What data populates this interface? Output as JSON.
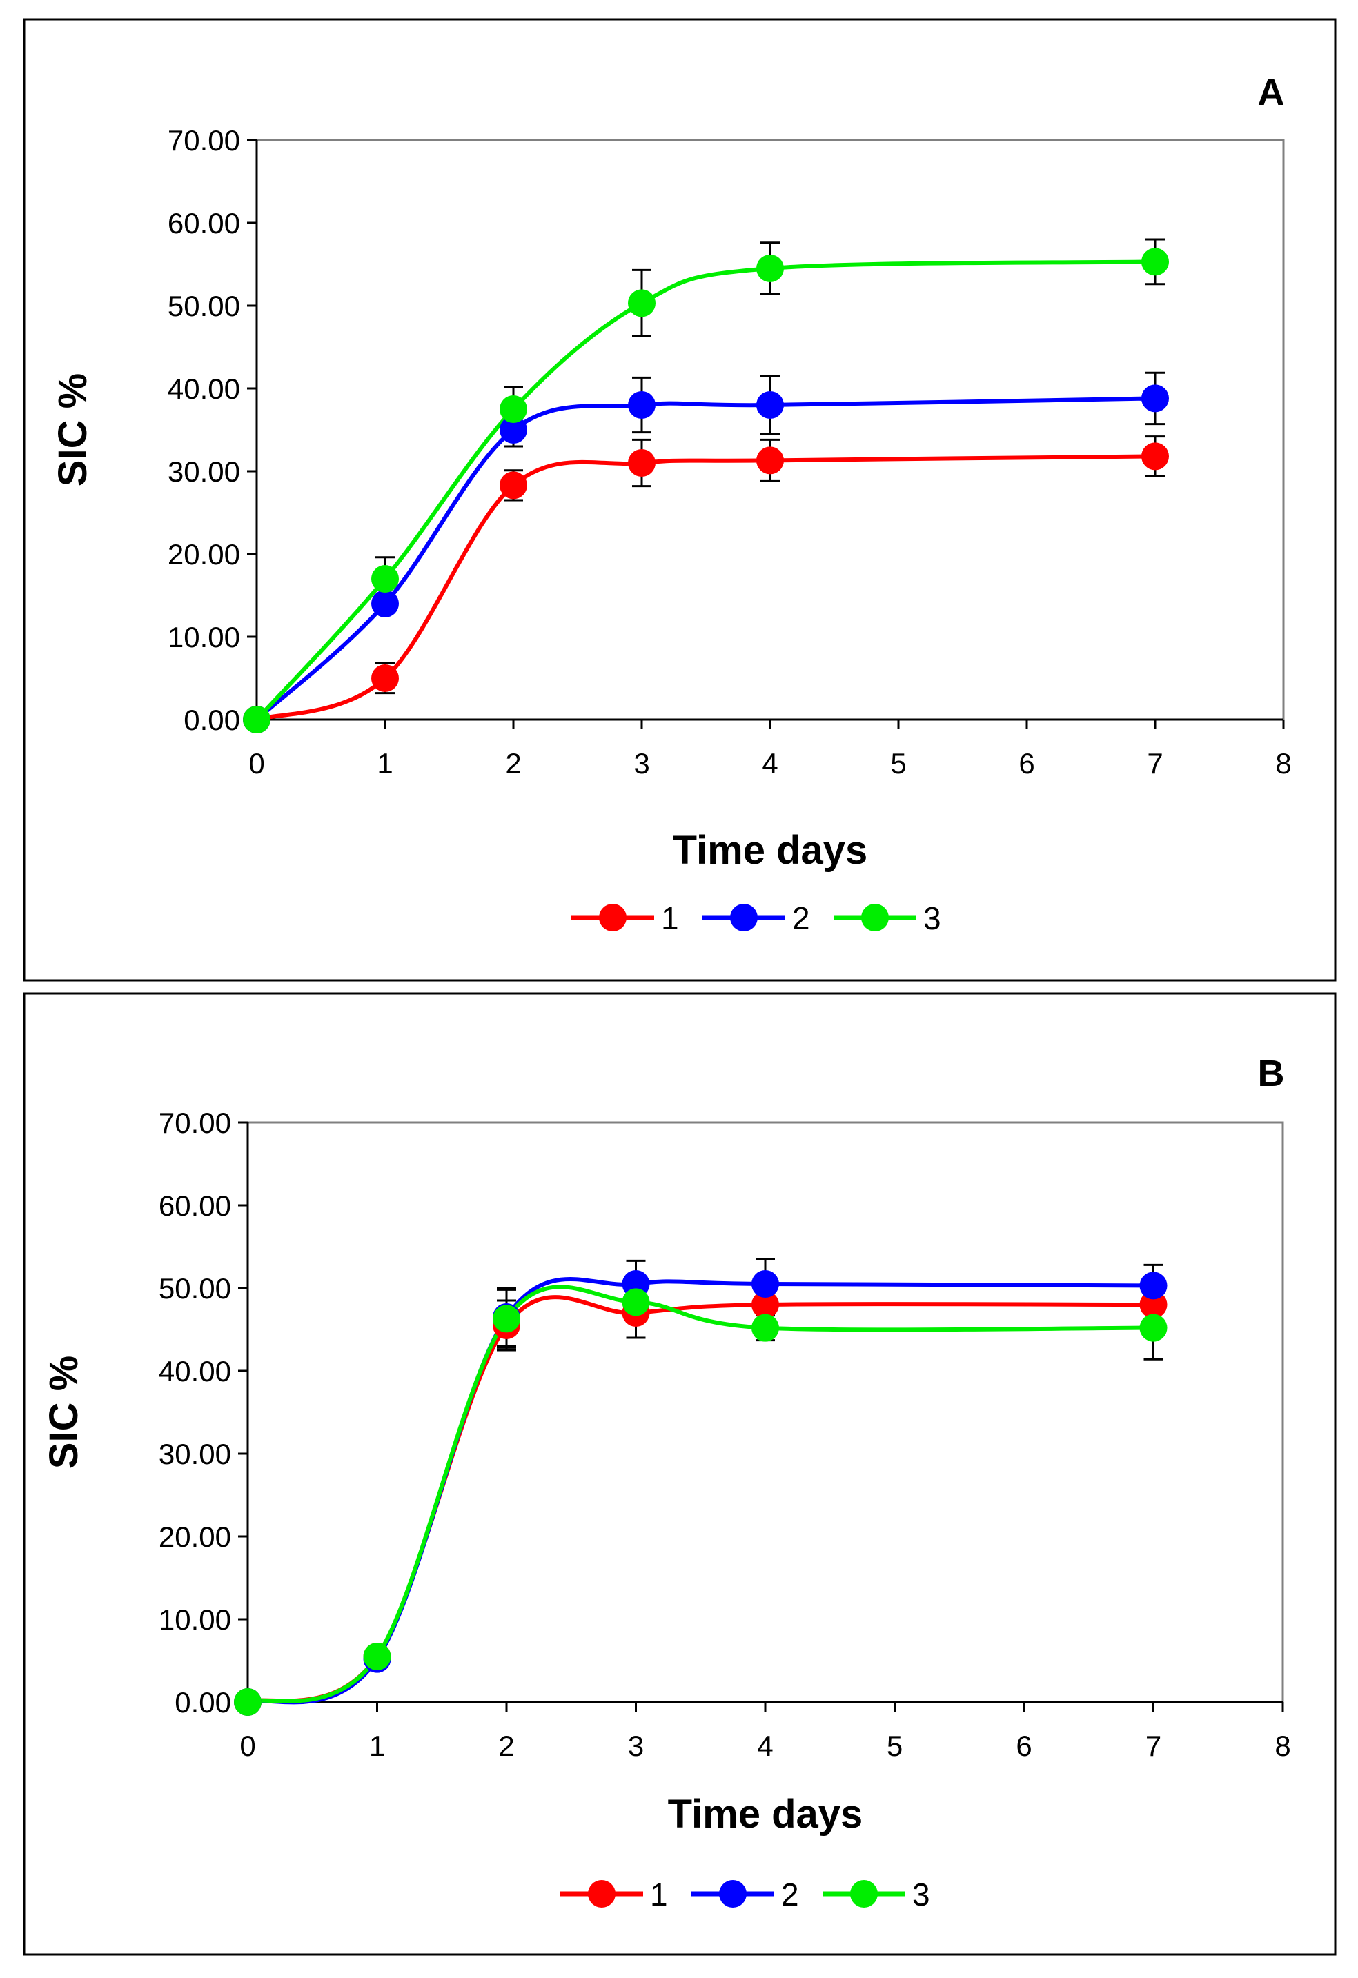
{
  "chart_data": [
    {
      "type": "line",
      "panel_label": "A",
      "title": "",
      "xlabel": "Time days",
      "ylabel": "SIC %",
      "xlim": [
        0,
        8
      ],
      "ylim": [
        0,
        70
      ],
      "x_ticks": [
        "0",
        "1",
        "2",
        "3",
        "4",
        "5",
        "6",
        "7",
        "8"
      ],
      "y_ticks": [
        "0.00",
        "10.00",
        "20.00",
        "30.00",
        "40.00",
        "50.00",
        "60.00",
        "70.00"
      ],
      "grid": false,
      "legend_position": "bottom-center",
      "series": [
        {
          "name": "1",
          "color": "#ff0000",
          "x": [
            0,
            1,
            2,
            3,
            4,
            7
          ],
          "values": [
            0.0,
            5.0,
            28.3,
            31.0,
            31.3,
            31.8
          ],
          "errors": [
            0,
            1.8,
            1.8,
            2.8,
            2.5,
            2.4
          ]
        },
        {
          "name": "2",
          "color": "#0000ff",
          "x": [
            0,
            1,
            2,
            3,
            4,
            7
          ],
          "values": [
            0.0,
            14.0,
            35.0,
            38.0,
            38.0,
            38.8
          ],
          "errors": [
            0,
            0,
            2.0,
            3.3,
            3.5,
            3.1
          ]
        },
        {
          "name": "3",
          "color": "#00ee00",
          "x": [
            0,
            1,
            2,
            3,
            4,
            7
          ],
          "values": [
            0.0,
            17.0,
            37.5,
            50.3,
            54.5,
            55.3
          ],
          "errors": [
            0,
            2.6,
            2.7,
            4.0,
            3.1,
            2.7
          ]
        }
      ]
    },
    {
      "type": "line",
      "panel_label": "B",
      "title": "",
      "xlabel": "Time days",
      "ylabel": "SIC %",
      "xlim": [
        0,
        8
      ],
      "ylim": [
        0,
        70
      ],
      "x_ticks": [
        "0",
        "1",
        "2",
        "3",
        "4",
        "5",
        "6",
        "7",
        "8"
      ],
      "y_ticks": [
        "0.00",
        "10.00",
        "20.00",
        "30.00",
        "40.00",
        "50.00",
        "60.00",
        "70.00"
      ],
      "grid": false,
      "legend_position": "bottom-center",
      "series": [
        {
          "name": "1",
          "color": "#ff0000",
          "x": [
            0,
            1,
            2,
            3,
            4,
            7
          ],
          "values": [
            0.0,
            5.5,
            45.5,
            47.0,
            48.0,
            48.0
          ],
          "errors": [
            0,
            0,
            3.0,
            3.0,
            0,
            0
          ]
        },
        {
          "name": "2",
          "color": "#0000ff",
          "x": [
            0,
            1,
            2,
            3,
            4,
            7
          ],
          "values": [
            0.0,
            5.2,
            46.5,
            50.5,
            50.5,
            50.3
          ],
          "errors": [
            0,
            0,
            3.5,
            2.8,
            3.0,
            2.5
          ]
        },
        {
          "name": "3",
          "color": "#00ee00",
          "x": [
            0,
            1,
            2,
            3,
            4,
            7
          ],
          "values": [
            0.0,
            5.5,
            46.3,
            48.3,
            45.2,
            45.2
          ],
          "errors": [
            0,
            0,
            3.5,
            0,
            1.5,
            3.8
          ]
        }
      ]
    }
  ]
}
